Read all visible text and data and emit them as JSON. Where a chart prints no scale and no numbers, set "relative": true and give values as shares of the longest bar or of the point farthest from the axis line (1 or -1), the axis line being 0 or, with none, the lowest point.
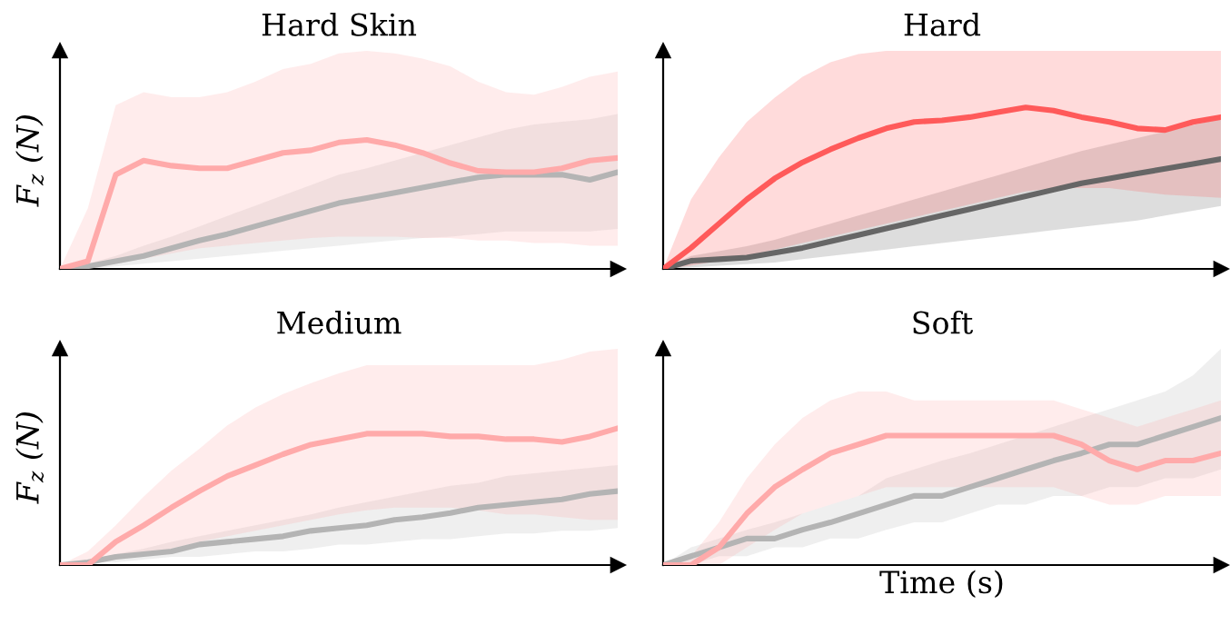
{
  "chart_data": [
    {
      "type": "line",
      "title": "Hard Skin",
      "ylabel": "F$_{z}$ (N)",
      "relative": true,
      "tick_labels": false,
      "categories": [
        null,
        null,
        null,
        null,
        null,
        null,
        null,
        null,
        null,
        null,
        null,
        null,
        null,
        null,
        null,
        null,
        null,
        null,
        null,
        null,
        null
      ],
      "series": [
        {
          "color": "#b4b4b4",
          "values": [
            0,
            0.02,
            0.06,
            0.1,
            0.16,
            0.22,
            0.27,
            0.33,
            0.39,
            0.45,
            0.51,
            0.55,
            0.59,
            0.63,
            0.67,
            0.71,
            0.73,
            0.73,
            0.73,
            0.69,
            0.75
          ],
          "lower": [
            0,
            0,
            0.02,
            0.04,
            0.06,
            0.08,
            0.1,
            0.12,
            0.14,
            0.16,
            0.18,
            0.2,
            0.22,
            0.24,
            0.25,
            0.27,
            0.29,
            0.29,
            0.29,
            0.29,
            0.31
          ],
          "upper": [
            0,
            0.04,
            0.1,
            0.18,
            0.25,
            0.33,
            0.41,
            0.49,
            0.57,
            0.65,
            0.73,
            0.78,
            0.84,
            0.9,
            0.96,
            1.02,
            1.08,
            1.12,
            1.14,
            1.16,
            1.2
          ]
        },
        {
          "color": "#ffaaaa",
          "values": [
            0,
            0.06,
            0.73,
            0.84,
            0.8,
            0.78,
            0.78,
            0.84,
            0.9,
            0.92,
            0.98,
            1,
            0.96,
            0.9,
            0.82,
            0.76,
            0.75,
            0.75,
            0.78,
            0.84,
            0.86
          ],
          "lower": [
            0,
            0,
            0.04,
            0.08,
            0.12,
            0.16,
            0.18,
            0.2,
            0.22,
            0.24,
            0.25,
            0.25,
            0.25,
            0.24,
            0.24,
            0.22,
            0.22,
            0.2,
            0.2,
            0.18,
            0.18
          ],
          "upper": [
            0,
            0.47,
            1.27,
            1.37,
            1.33,
            1.33,
            1.37,
            1.45,
            1.55,
            1.59,
            1.67,
            1.69,
            1.67,
            1.63,
            1.57,
            1.45,
            1.37,
            1.35,
            1.41,
            1.49,
            1.53
          ]
        }
      ]
    },
    {
      "type": "line",
      "title": "Hard",
      "relative": true,
      "tick_labels": false,
      "categories": [
        null,
        null,
        null,
        null,
        null,
        null,
        null,
        null,
        null,
        null,
        null,
        null,
        null,
        null,
        null,
        null,
        null,
        null,
        null,
        null,
        null
      ],
      "series": [
        {
          "color": "#666666",
          "values": [
            0,
            0.05,
            0.06,
            0.07,
            0.1,
            0.13,
            0.17,
            0.21,
            0.25,
            0.29,
            0.33,
            0.37,
            0.41,
            0.45,
            0.49,
            0.53,
            0.56,
            0.59,
            0.62,
            0.65,
            0.68
          ],
          "lower": [
            0,
            0.01,
            0.02,
            0.03,
            0.04,
            0.06,
            0.08,
            0.1,
            0.12,
            0.14,
            0.16,
            0.18,
            0.2,
            0.22,
            0.24,
            0.26,
            0.28,
            0.3,
            0.33,
            0.36,
            0.39
          ],
          "upper": [
            0,
            0.08,
            0.11,
            0.14,
            0.18,
            0.23,
            0.28,
            0.33,
            0.38,
            0.43,
            0.48,
            0.53,
            0.58,
            0.63,
            0.68,
            0.73,
            0.77,
            0.81,
            0.85,
            0.89,
            0.93
          ]
        },
        {
          "color": "#ff5a5a",
          "values": [
            0,
            0.13,
            0.28,
            0.43,
            0.56,
            0.66,
            0.74,
            0.81,
            0.87,
            0.91,
            0.92,
            0.94,
            0.97,
            1.0,
            0.98,
            0.94,
            0.91,
            0.87,
            0.86,
            0.91,
            0.94
          ],
          "lower": [
            0,
            0.02,
            0.05,
            0.08,
            0.12,
            0.16,
            0.2,
            0.24,
            0.28,
            0.32,
            0.36,
            0.4,
            0.44,
            0.48,
            0.5,
            0.5,
            0.5,
            0.48,
            0.46,
            0.45,
            0.44
          ],
          "upper": [
            0,
            0.43,
            0.69,
            0.91,
            1.06,
            1.19,
            1.28,
            1.33,
            1.35,
            1.35,
            1.35,
            1.35,
            1.35,
            1.35,
            1.35,
            1.35,
            1.35,
            1.35,
            1.35,
            1.35,
            1.35
          ]
        }
      ]
    },
    {
      "type": "line",
      "title": "Medium",
      "ylabel": "F$_{z}$ (N)",
      "relative": true,
      "tick_labels": false,
      "categories": [
        null,
        null,
        null,
        null,
        null,
        null,
        null,
        null,
        null,
        null,
        null,
        null,
        null,
        null,
        null,
        null,
        null,
        null,
        null,
        null,
        null
      ],
      "series": [
        {
          "color": "#b4b4b4",
          "values": [
            0,
            0.02,
            0.06,
            0.08,
            0.1,
            0.15,
            0.17,
            0.19,
            0.21,
            0.25,
            0.27,
            0.29,
            0.33,
            0.35,
            0.38,
            0.42,
            0.44,
            0.46,
            0.48,
            0.52,
            0.54
          ],
          "lower": [
            0,
            0.02,
            0.02,
            0.04,
            0.06,
            0.06,
            0.08,
            0.1,
            0.1,
            0.12,
            0.15,
            0.15,
            0.17,
            0.19,
            0.19,
            0.21,
            0.23,
            0.23,
            0.25,
            0.25,
            0.27
          ],
          "upper": [
            0,
            0.04,
            0.08,
            0.12,
            0.17,
            0.21,
            0.25,
            0.29,
            0.33,
            0.37,
            0.42,
            0.46,
            0.5,
            0.54,
            0.58,
            0.6,
            0.65,
            0.67,
            0.69,
            0.71,
            0.73
          ]
        },
        {
          "color": "#ffaaaa",
          "values": [
            0,
            0,
            0.17,
            0.29,
            0.42,
            0.54,
            0.65,
            0.73,
            0.81,
            0.88,
            0.92,
            0.96,
            0.96,
            0.96,
            0.94,
            0.94,
            0.92,
            0.92,
            0.9,
            0.94,
            1
          ],
          "lower": [
            0,
            0,
            0.04,
            0.08,
            0.12,
            0.17,
            0.21,
            0.25,
            0.29,
            0.33,
            0.37,
            0.4,
            0.42,
            0.42,
            0.42,
            0.4,
            0.37,
            0.37,
            0.35,
            0.33,
            0.33
          ],
          "upper": [
            0,
            0.1,
            0.29,
            0.5,
            0.69,
            0.85,
            1.02,
            1.15,
            1.25,
            1.33,
            1.4,
            1.46,
            1.46,
            1.46,
            1.46,
            1.46,
            1.46,
            1.46,
            1.5,
            1.56,
            1.58
          ]
        }
      ]
    },
    {
      "type": "line",
      "title": "Soft",
      "xlabel": "Time (s)",
      "relative": true,
      "tick_labels": false,
      "categories": [
        null,
        null,
        null,
        null,
        null,
        null,
        null,
        null,
        null,
        null,
        null,
        null,
        null,
        null,
        null,
        null,
        null,
        null,
        null,
        null,
        null
      ],
      "series": [
        {
          "color": "#b4b4b4",
          "values": [
            0,
            0.06,
            0.12,
            0.18,
            0.18,
            0.24,
            0.29,
            0.35,
            0.41,
            0.47,
            0.47,
            0.53,
            0.59,
            0.65,
            0.71,
            0.76,
            0.82,
            0.82,
            0.88,
            0.94,
            1
          ],
          "lower": [
            0,
            0,
            0.06,
            0.06,
            0.12,
            0.12,
            0.18,
            0.18,
            0.24,
            0.29,
            0.29,
            0.35,
            0.41,
            0.41,
            0.47,
            0.47,
            0.53,
            0.53,
            0.59,
            0.59,
            0.65
          ],
          "upper": [
            0,
            0.12,
            0.18,
            0.24,
            0.29,
            0.35,
            0.41,
            0.47,
            0.59,
            0.65,
            0.71,
            0.76,
            0.82,
            0.88,
            0.94,
            1,
            1.06,
            1.12,
            1.18,
            1.29,
            1.47
          ]
        },
        {
          "color": "#ffaaaa",
          "values": [
            0,
            0,
            0.12,
            0.35,
            0.53,
            0.65,
            0.76,
            0.82,
            0.88,
            0.88,
            0.88,
            0.88,
            0.88,
            0.88,
            0.88,
            0.82,
            0.71,
            0.65,
            0.71,
            0.71,
            0.76
          ],
          "lower": [
            0,
            0,
            0,
            0.12,
            0.24,
            0.35,
            0.41,
            0.47,
            0.53,
            0.53,
            0.53,
            0.53,
            0.53,
            0.53,
            0.53,
            0.47,
            0.41,
            0.41,
            0.47,
            0.47,
            0.47
          ],
          "upper": [
            0,
            0.06,
            0.29,
            0.59,
            0.82,
            1,
            1.12,
            1.18,
            1.18,
            1.12,
            1.12,
            1.12,
            1.12,
            1.12,
            1.12,
            1.06,
            1,
            0.94,
            1,
            1.06,
            1.12
          ]
        }
      ]
    }
  ]
}
